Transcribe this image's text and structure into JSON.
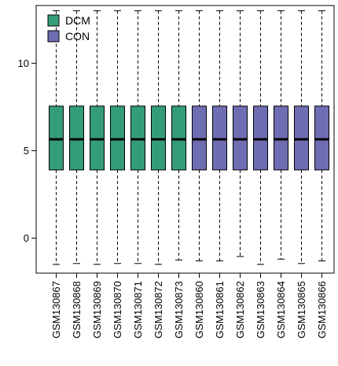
{
  "chart_data": {
    "type": "box",
    "categories": [
      "GSM130867",
      "GSM130868",
      "GSM130869",
      "GSM130870",
      "GSM130871",
      "GSM130872",
      "GSM130873",
      "GSM130860",
      "GSM130861",
      "GSM130862",
      "GSM130863",
      "GSM130864",
      "GSM130865",
      "GSM130866"
    ],
    "groups": [
      "DCM",
      "DCM",
      "DCM",
      "DCM",
      "DCM",
      "DCM",
      "DCM",
      "CON",
      "CON",
      "CON",
      "CON",
      "CON",
      "CON",
      "CON"
    ],
    "boxes": [
      {
        "min": -1.5,
        "q1": 3.9,
        "median": 5.65,
        "q3": 7.55,
        "max": 13.0
      },
      {
        "min": -1.45,
        "q1": 3.9,
        "median": 5.65,
        "q3": 7.55,
        "max": 13.0
      },
      {
        "min": -1.5,
        "q1": 3.9,
        "median": 5.65,
        "q3": 7.55,
        "max": 13.0
      },
      {
        "min": -1.45,
        "q1": 3.9,
        "median": 5.65,
        "q3": 7.55,
        "max": 13.0
      },
      {
        "min": -1.45,
        "q1": 3.9,
        "median": 5.65,
        "q3": 7.55,
        "max": 13.0
      },
      {
        "min": -1.5,
        "q1": 3.9,
        "median": 5.65,
        "q3": 7.55,
        "max": 13.0
      },
      {
        "min": -1.25,
        "q1": 3.9,
        "median": 5.65,
        "q3": 7.55,
        "max": 13.0
      },
      {
        "min": -1.3,
        "q1": 3.9,
        "median": 5.65,
        "q3": 7.55,
        "max": 13.0
      },
      {
        "min": -1.3,
        "q1": 3.9,
        "median": 5.65,
        "q3": 7.55,
        "max": 13.0
      },
      {
        "min": -1.05,
        "q1": 3.9,
        "median": 5.65,
        "q3": 7.55,
        "max": 13.0
      },
      {
        "min": -1.5,
        "q1": 3.9,
        "median": 5.65,
        "q3": 7.55,
        "max": 13.0
      },
      {
        "min": -1.2,
        "q1": 3.9,
        "median": 5.65,
        "q3": 7.55,
        "max": 13.0
      },
      {
        "min": -1.45,
        "q1": 3.9,
        "median": 5.65,
        "q3": 7.55,
        "max": 13.0
      },
      {
        "min": -1.3,
        "q1": 3.9,
        "median": 5.65,
        "q3": 7.55,
        "max": 13.0
      }
    ],
    "yticks": [
      0,
      5,
      10
    ],
    "ylim": [
      -2.0,
      13.3
    ],
    "legend": {
      "placement": "top-left",
      "entries": [
        {
          "label": "DCM",
          "color": "#359c7a"
        },
        {
          "label": "CON",
          "color": "#6e6db2"
        }
      ]
    },
    "title": "",
    "xlabel": "",
    "ylabel": ""
  }
}
